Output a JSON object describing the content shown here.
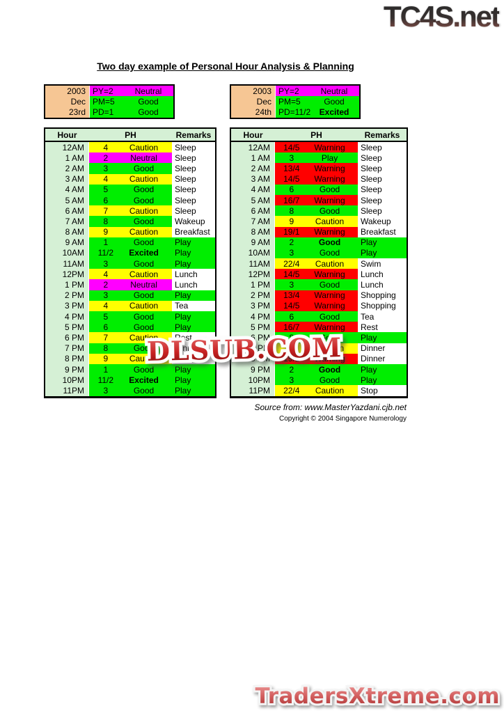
{
  "logos": {
    "top_right": "TC4S.net",
    "bottom_right": "TradersXtreme.com"
  },
  "title": "Two day example of Personal Hour Analysis & Planning",
  "watermark": "DLSUB.COM",
  "source": {
    "line1": "Source from: www.MasterYazdani.cjb.net",
    "line2": "Copyright © 2004 Singapore Numerology"
  },
  "colors": {
    "yellow": "#FFFF00",
    "green": "#00EE00",
    "magenta": "#FF00FF",
    "red": "#FF0000",
    "pale_green": "#D5F0D5",
    "peach": "#F6C694",
    "white": "#FFFFFF"
  },
  "table_headers": [
    "Hour",
    "PH",
    "Remarks"
  ],
  "days": [
    {
      "info": [
        {
          "date": "2003",
          "code": "PY=2",
          "status": "Neutral",
          "color": "magenta",
          "bold": false
        },
        {
          "date": "Dec",
          "code": "PM=5",
          "status": "Good",
          "color": "green",
          "bold": false
        },
        {
          "date": "23rd",
          "code": "PD=1",
          "status": "Good",
          "color": "green",
          "bold": false
        }
      ],
      "rows": [
        {
          "hour": "12AM",
          "ph": "4",
          "status": "Caution",
          "color": "yellow",
          "remark": "Sleep",
          "remark_green": false,
          "bold": false
        },
        {
          "hour": "1 AM",
          "ph": "2",
          "status": "Neutral",
          "color": "magenta",
          "remark": "Sleep",
          "remark_green": false,
          "bold": false
        },
        {
          "hour": "2 AM",
          "ph": "3",
          "status": "Good",
          "color": "green",
          "remark": "Sleep",
          "remark_green": false,
          "bold": false
        },
        {
          "hour": "3 AM",
          "ph": "4",
          "status": "Caution",
          "color": "yellow",
          "remark": "Sleep",
          "remark_green": false,
          "bold": false
        },
        {
          "hour": "4 AM",
          "ph": "5",
          "status": "Good",
          "color": "green",
          "remark": "Sleep",
          "remark_green": false,
          "bold": false
        },
        {
          "hour": "5 AM",
          "ph": "6",
          "status": "Good",
          "color": "green",
          "remark": "Sleep",
          "remark_green": false,
          "bold": false
        },
        {
          "hour": "6 AM",
          "ph": "7",
          "status": "Caution",
          "color": "yellow",
          "remark": "Sleep",
          "remark_green": false,
          "bold": false
        },
        {
          "hour": "7 AM",
          "ph": "8",
          "status": "Good",
          "color": "green",
          "remark": "Wakeup",
          "remark_green": false,
          "bold": false
        },
        {
          "hour": "8 AM",
          "ph": "9",
          "status": "Caution",
          "color": "yellow",
          "remark": "Breakfast",
          "remark_green": false,
          "bold": false
        },
        {
          "hour": "9 AM",
          "ph": "1",
          "status": "Good",
          "color": "green",
          "remark": "Play",
          "remark_green": true,
          "bold": false
        },
        {
          "hour": "10AM",
          "ph": "11/2",
          "status": "Excited",
          "color": "green",
          "remark": "Play",
          "remark_green": true,
          "bold": true
        },
        {
          "hour": "11AM",
          "ph": "3",
          "status": "Good",
          "color": "green",
          "remark": "Play",
          "remark_green": true,
          "bold": false
        },
        {
          "hour": "12PM",
          "ph": "4",
          "status": "Caution",
          "color": "yellow",
          "remark": "Lunch",
          "remark_green": false,
          "bold": false
        },
        {
          "hour": "1 PM",
          "ph": "2",
          "status": "Neutral",
          "color": "magenta",
          "remark": "Lunch",
          "remark_green": false,
          "bold": false
        },
        {
          "hour": "2 PM",
          "ph": "3",
          "status": "Good",
          "color": "green",
          "remark": "Play",
          "remark_green": true,
          "bold": false
        },
        {
          "hour": "3 PM",
          "ph": "4",
          "status": "Caution",
          "color": "yellow",
          "remark": "Tea",
          "remark_green": false,
          "bold": false
        },
        {
          "hour": "4 PM",
          "ph": "5",
          "status": "Good",
          "color": "green",
          "remark": "Play",
          "remark_green": true,
          "bold": false
        },
        {
          "hour": "5 PM",
          "ph": "6",
          "status": "Good",
          "color": "green",
          "remark": "Play",
          "remark_green": true,
          "bold": false
        },
        {
          "hour": "6 PM",
          "ph": "7",
          "status": "Caution",
          "color": "yellow",
          "remark": "Rest",
          "remark_green": false,
          "bold": false
        },
        {
          "hour": "7 PM",
          "ph": "8",
          "status": "Good",
          "color": "green",
          "remark": "Dinner",
          "remark_green": false,
          "bold": false
        },
        {
          "hour": "8 PM",
          "ph": "9",
          "status": "Caution",
          "color": "yellow",
          "remark": "Dinner",
          "remark_green": false,
          "bold": false
        },
        {
          "hour": "9 PM",
          "ph": "1",
          "status": "Good",
          "color": "green",
          "remark": "Play",
          "remark_green": true,
          "bold": false
        },
        {
          "hour": "10PM",
          "ph": "11/2",
          "status": "Excited",
          "color": "green",
          "remark": "Play",
          "remark_green": true,
          "bold": true
        },
        {
          "hour": "11PM",
          "ph": "3",
          "status": "Good",
          "color": "green",
          "remark": "Play",
          "remark_green": true,
          "bold": false
        }
      ]
    },
    {
      "info": [
        {
          "date": "2003",
          "code": "PY=2",
          "status": "Neutral",
          "color": "magenta",
          "bold": false
        },
        {
          "date": "Dec",
          "code": "PM=5",
          "status": "Good",
          "color": "green",
          "bold": false
        },
        {
          "date": "24th",
          "code": "PD=11/2",
          "status": "Excited",
          "color": "green",
          "bold": true
        }
      ],
      "rows": [
        {
          "hour": "12AM",
          "ph": "14/5",
          "status": "Warning",
          "color": "red",
          "remark": "Sleep",
          "remark_green": false,
          "bold": false
        },
        {
          "hour": "1 AM",
          "ph": "3",
          "status": "Play",
          "color": "green",
          "remark": "Sleep",
          "remark_green": false,
          "bold": false
        },
        {
          "hour": "2 AM",
          "ph": "13/4",
          "status": "Warning",
          "color": "red",
          "remark": "Sleep",
          "remark_green": false,
          "bold": false
        },
        {
          "hour": "3 AM",
          "ph": "14/5",
          "status": "Warning",
          "color": "red",
          "remark": "Sleep",
          "remark_green": false,
          "bold": false
        },
        {
          "hour": "4 AM",
          "ph": "6",
          "status": "Good",
          "color": "green",
          "remark": "Sleep",
          "remark_green": false,
          "bold": false
        },
        {
          "hour": "5 AM",
          "ph": "16/7",
          "status": "Warning",
          "color": "red",
          "remark": "Sleep",
          "remark_green": false,
          "bold": false
        },
        {
          "hour": "6 AM",
          "ph": "8",
          "status": "Good",
          "color": "green",
          "remark": "Sleep",
          "remark_green": false,
          "bold": false
        },
        {
          "hour": "7 AM",
          "ph": "9",
          "status": "Caution",
          "color": "yellow",
          "remark": "Wakeup",
          "remark_green": false,
          "bold": false
        },
        {
          "hour": "8 AM",
          "ph": "19/1",
          "status": "Warning",
          "color": "red",
          "remark": "Breakfast",
          "remark_green": false,
          "bold": false
        },
        {
          "hour": "9 AM",
          "ph": "2",
          "status": "Good",
          "color": "green",
          "remark": "Play",
          "remark_green": true,
          "bold": true
        },
        {
          "hour": "10AM",
          "ph": "3",
          "status": "Good",
          "color": "green",
          "remark": "Play",
          "remark_green": true,
          "bold": false
        },
        {
          "hour": "11AM",
          "ph": "22/4",
          "status": "Caution",
          "color": "yellow",
          "remark": "Swim",
          "remark_green": false,
          "bold": false
        },
        {
          "hour": "12PM",
          "ph": "14/5",
          "status": "Warning",
          "color": "red",
          "remark": "Lunch",
          "remark_green": false,
          "bold": false
        },
        {
          "hour": "1 PM",
          "ph": "3",
          "status": "Good",
          "color": "green",
          "remark": "Lunch",
          "remark_green": false,
          "bold": false
        },
        {
          "hour": "2 PM",
          "ph": "13/4",
          "status": "Warning",
          "color": "red",
          "remark": "Shopping",
          "remark_green": false,
          "bold": false
        },
        {
          "hour": "3 PM",
          "ph": "14/5",
          "status": "Warning",
          "color": "red",
          "remark": "Shopping",
          "remark_green": false,
          "bold": false
        },
        {
          "hour": "4 PM",
          "ph": "6",
          "status": "Good",
          "color": "green",
          "remark": "Tea",
          "remark_green": false,
          "bold": false
        },
        {
          "hour": "5 PM",
          "ph": "16/7",
          "status": "Warning",
          "color": "red",
          "remark": "Rest",
          "remark_green": false,
          "bold": false
        },
        {
          "hour": "6 PM",
          "ph": "8",
          "status": "Good",
          "color": "green",
          "remark": "Play",
          "remark_green": true,
          "bold": false
        },
        {
          "hour": "7 PM",
          "ph": "9",
          "status": "Caution",
          "color": "yellow",
          "remark": "Dinner",
          "remark_green": false,
          "bold": false
        },
        {
          "hour": "8 PM",
          "ph": "19/1",
          "status": "Warning",
          "color": "red",
          "remark": "Dinner",
          "remark_green": false,
          "bold": false
        },
        {
          "hour": "9 PM",
          "ph": "2",
          "status": "Good",
          "color": "green",
          "remark": "Play",
          "remark_green": true,
          "bold": true
        },
        {
          "hour": "10PM",
          "ph": "3",
          "status": "Good",
          "color": "green",
          "remark": "Play",
          "remark_green": true,
          "bold": false
        },
        {
          "hour": "11PM",
          "ph": "22/4",
          "status": "Caution",
          "color": "yellow",
          "remark": "Stop",
          "remark_green": false,
          "bold": false
        }
      ]
    }
  ]
}
